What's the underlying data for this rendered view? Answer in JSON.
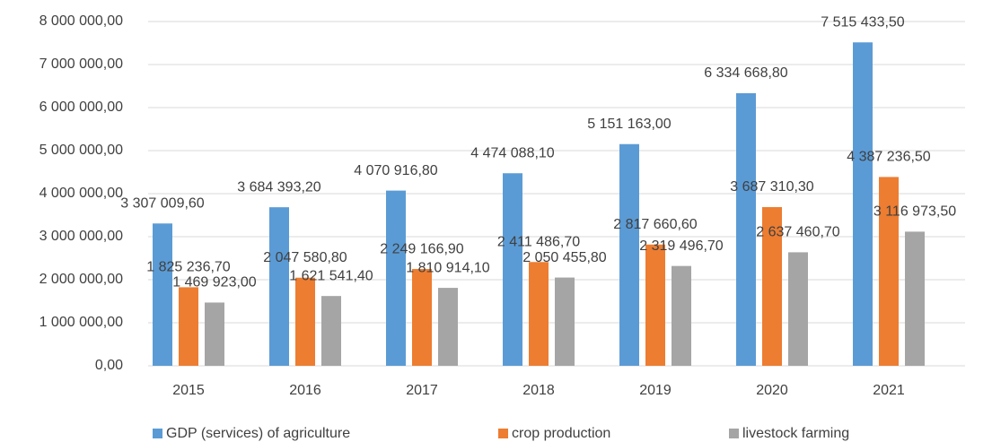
{
  "chart_data": {
    "type": "bar",
    "categories": [
      "2015",
      "2016",
      "2017",
      "2018",
      "2019",
      "2020",
      "2021"
    ],
    "series": [
      {
        "name": "GDP (services) of agriculture",
        "color": "#5b9bd5",
        "values": [
          3307009.6,
          3684393.2,
          4070916.8,
          4474088.1,
          5151163.0,
          6334668.8,
          7515433.5
        ],
        "value_labels": [
          "3 307 009,60",
          "3 684 393,20",
          "4 070 916,80",
          "4 474 088,10",
          "5 151 163,00",
          "6 334 668,80",
          "7 515 433,50"
        ]
      },
      {
        "name": "crop production",
        "color": "#ed7d31",
        "values": [
          1825236.7,
          2047580.8,
          2249166.9,
          2411486.7,
          2817660.6,
          3687310.3,
          4387236.5
        ],
        "value_labels": [
          "1 825 236,70",
          "2 047 580,80",
          "2 249 166,90",
          "2 411 486,70",
          "2 817 660,60",
          "3 687 310,30",
          "4 387 236,50"
        ]
      },
      {
        "name": "livestock farming",
        "color": "#a5a5a5",
        "values": [
          1469923.0,
          1621541.4,
          1810914.1,
          2050455.8,
          2319496.7,
          2637460.7,
          3116973.5
        ],
        "value_labels": [
          "1 469 923,00",
          "1 621 541,40",
          "1 810 914,10",
          "2 050 455,80",
          "2 319 496,70",
          "2 637 460,70",
          "3 116 973,50"
        ]
      }
    ],
    "ylim": [
      0,
      8000000
    ],
    "yticks": [
      {
        "value": 0,
        "label": "0,00"
      },
      {
        "value": 1000000,
        "label": "1 000 000,00"
      },
      {
        "value": 2000000,
        "label": "2 000 000,00"
      },
      {
        "value": 3000000,
        "label": "3 000 000,00"
      },
      {
        "value": 4000000,
        "label": "4 000 000,00"
      },
      {
        "value": 5000000,
        "label": "5 000 000,00"
      },
      {
        "value": 6000000,
        "label": "6 000 000,00"
      },
      {
        "value": 7000000,
        "label": "7 000 000,00"
      },
      {
        "value": 8000000,
        "label": "8 000 000,00"
      }
    ],
    "grid": true,
    "legend": "bottom"
  }
}
